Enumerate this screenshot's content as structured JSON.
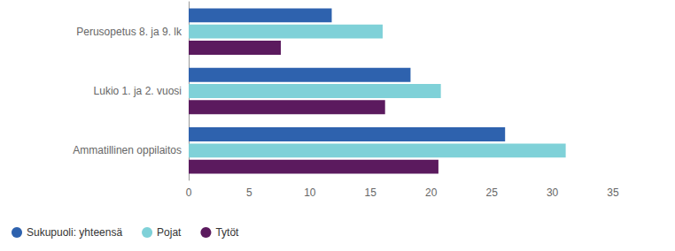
{
  "chart_data": {
    "type": "bar",
    "orientation": "horizontal",
    "categories": [
      "Perusopetus 8. ja 9. lk",
      "Lukio 1. ja 2. vuosi",
      "Ammatillinen oppilaitos"
    ],
    "series": [
      {
        "name": "Sukupuoli: yhteensä",
        "color": "#2e62ae",
        "values": [
          11.8,
          18.3,
          26.1
        ]
      },
      {
        "name": "Pojat",
        "color": "#7fd1d8",
        "values": [
          16.0,
          20.8,
          31.1
        ]
      },
      {
        "name": "Tytöt",
        "color": "#5b1a5e",
        "values": [
          7.6,
          16.2,
          20.6
        ]
      }
    ],
    "xlim": [
      0,
      35
    ],
    "xticks": [
      0,
      5,
      10,
      15,
      20,
      25,
      30,
      35
    ],
    "grid": false,
    "legend": "bottom-left"
  }
}
